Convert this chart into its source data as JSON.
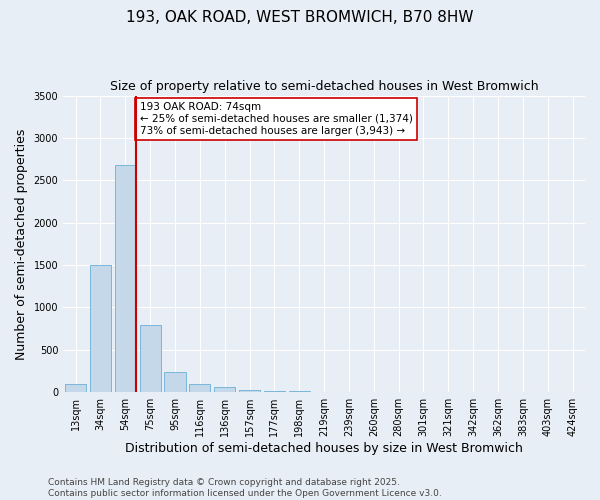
{
  "title": "193, OAK ROAD, WEST BROMWICH, B70 8HW",
  "subtitle": "Size of property relative to semi-detached houses in West Bromwich",
  "xlabel": "Distribution of semi-detached houses by size in West Bromwich",
  "ylabel": "Number of semi-detached properties",
  "categories": [
    "13sqm",
    "34sqm",
    "54sqm",
    "75sqm",
    "95sqm",
    "116sqm",
    "136sqm",
    "157sqm",
    "177sqm",
    "198sqm",
    "219sqm",
    "239sqm",
    "260sqm",
    "280sqm",
    "301sqm",
    "321sqm",
    "342sqm",
    "362sqm",
    "383sqm",
    "403sqm",
    "424sqm"
  ],
  "values": [
    100,
    1500,
    2680,
    790,
    240,
    100,
    60,
    30,
    20,
    15,
    5,
    0,
    0,
    0,
    0,
    0,
    0,
    0,
    0,
    0,
    0
  ],
  "bar_color": "#c5d8ea",
  "bar_edge_color": "#6aafd6",
  "vline_color": "#cc0000",
  "annotation_text": "193 OAK ROAD: 74sqm\n← 25% of semi-detached houses are smaller (1,374)\n73% of semi-detached houses are larger (3,943) →",
  "annotation_box_color": "#ffffff",
  "annotation_box_edge": "#cc0000",
  "ylim": [
    0,
    3500
  ],
  "yticks": [
    0,
    500,
    1000,
    1500,
    2000,
    2500,
    3000,
    3500
  ],
  "footer": "Contains HM Land Registry data © Crown copyright and database right 2025.\nContains public sector information licensed under the Open Government Licence v3.0.",
  "background_color": "#e8eef5",
  "plot_background": "#e8eef5",
  "title_fontsize": 11,
  "subtitle_fontsize": 9,
  "axis_label_fontsize": 9,
  "tick_fontsize": 7,
  "footer_fontsize": 6.5,
  "annotation_fontsize": 7.5
}
